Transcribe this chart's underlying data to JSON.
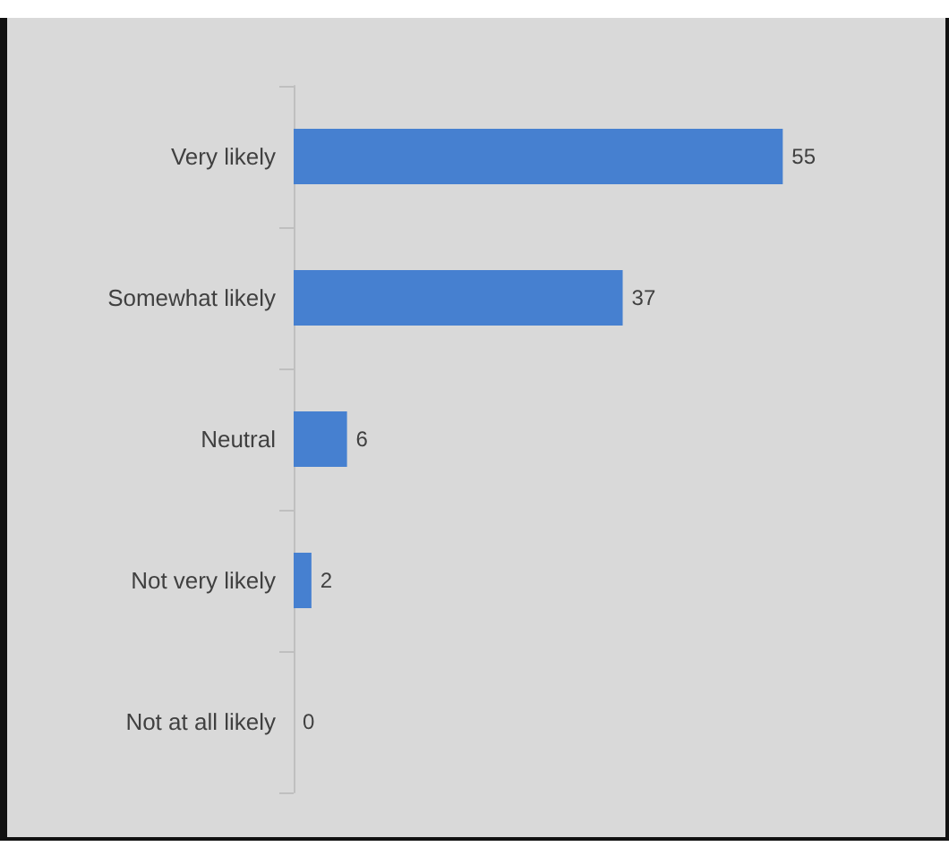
{
  "chart_data": {
    "type": "bar",
    "orientation": "horizontal",
    "categories": [
      "Very likely",
      "Somewhat likely",
      "Neutral",
      "Not very likely",
      "Not at all likely"
    ],
    "values": [
      55,
      37,
      6,
      2,
      0
    ],
    "color": "#4680d0",
    "data_labels": true
  }
}
